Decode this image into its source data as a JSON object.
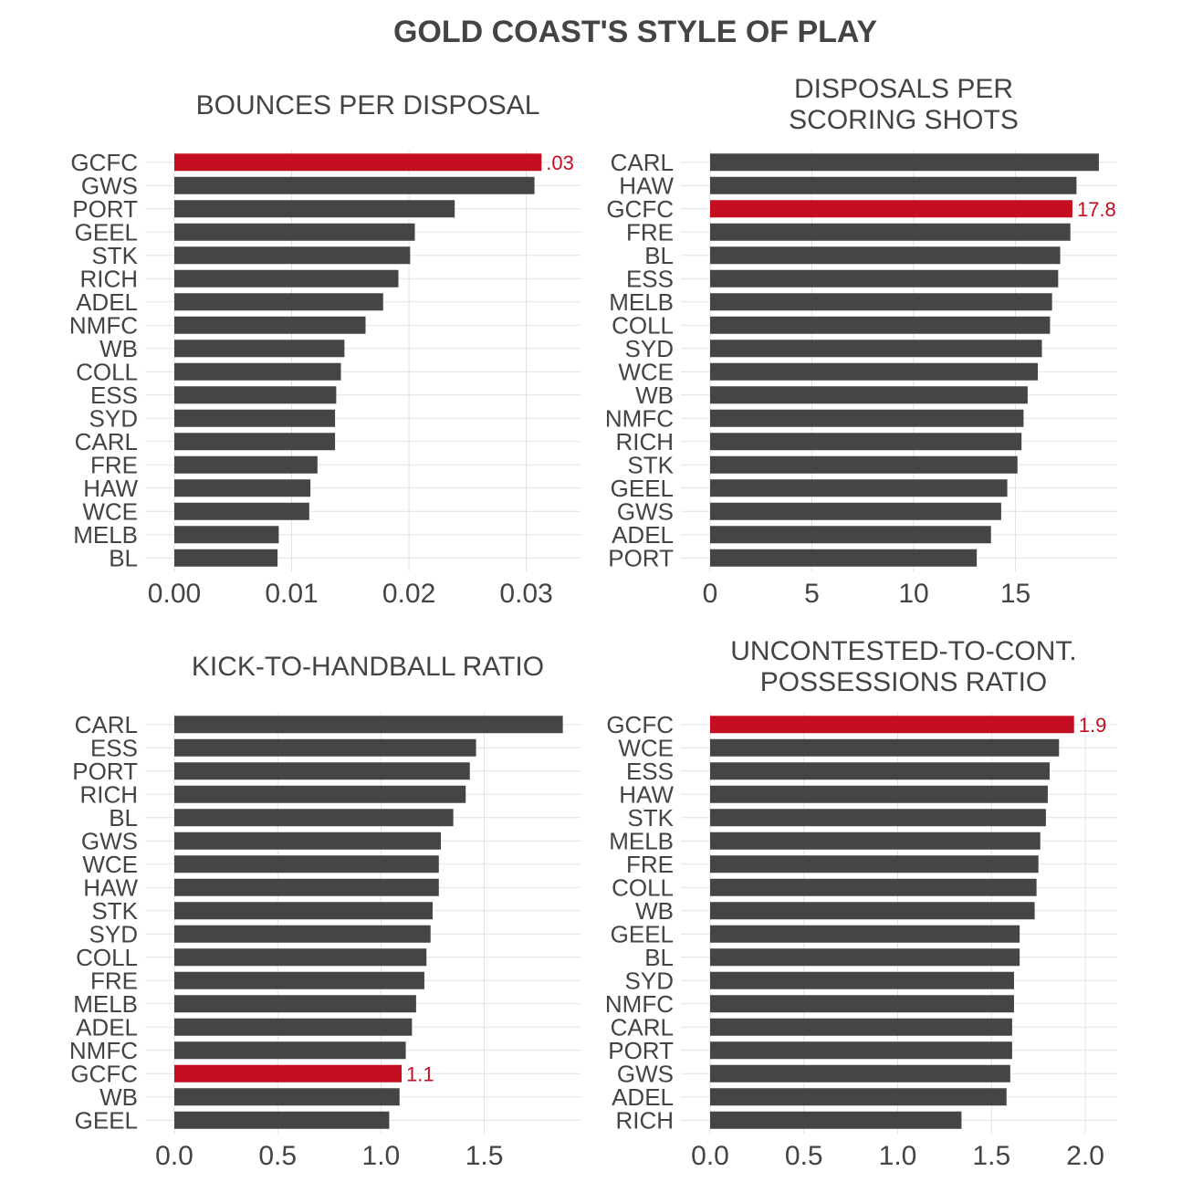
{
  "title": "GOLD COAST'S STYLE OF PLAY",
  "colors": {
    "bar": "#454545",
    "highlight": "#c40d20",
    "text": "#444444",
    "grid": "#e2e2e2"
  },
  "chart_data": [
    {
      "type": "bar",
      "orientation": "horizontal",
      "title_lines": [
        "BOUNCES PER DISPOSAL"
      ],
      "categories": [
        "GCFC",
        "GWS",
        "PORT",
        "GEEL",
        "STK",
        "RICH",
        "ADEL",
        "NMFC",
        "WB",
        "COLL",
        "ESS",
        "SYD",
        "CARL",
        "FRE",
        "HAW",
        "WCE",
        "MELB",
        "BL"
      ],
      "values": [
        0.0313,
        0.0307,
        0.0239,
        0.0205,
        0.0201,
        0.0191,
        0.0178,
        0.0163,
        0.0145,
        0.0142,
        0.0138,
        0.0137,
        0.0137,
        0.0122,
        0.0116,
        0.0115,
        0.0089,
        0.0088
      ],
      "highlight": "GCFC",
      "highlight_label": ".03",
      "xlim": [
        0,
        0.0347
      ],
      "xticks": [
        0,
        0.01,
        0.02,
        0.03
      ],
      "xtick_labels": [
        "0.00",
        "0.01",
        "0.02",
        "0.03"
      ]
    },
    {
      "type": "bar",
      "orientation": "horizontal",
      "title_lines": [
        "DISPOSALS PER",
        "SCORING SHOTS"
      ],
      "categories": [
        "CARL",
        "HAW",
        "GCFC",
        "FRE",
        "BL",
        "ESS",
        "MELB",
        "COLL",
        "SYD",
        "WCE",
        "WB",
        "NMFC",
        "RICH",
        "STK",
        "GEEL",
        "GWS",
        "ADEL",
        "PORT"
      ],
      "values": [
        19.1,
        18.0,
        17.8,
        17.7,
        17.2,
        17.1,
        16.8,
        16.7,
        16.3,
        16.1,
        15.6,
        15.4,
        15.3,
        15.1,
        14.6,
        14.3,
        13.8,
        13.1
      ],
      "highlight": "GCFC",
      "highlight_label": "17.8",
      "xlim": [
        0,
        20.0
      ],
      "xticks": [
        0,
        5,
        10,
        15
      ],
      "xtick_labels": [
        "0",
        "5",
        "10",
        "15"
      ]
    },
    {
      "type": "bar",
      "orientation": "horizontal",
      "title_lines": [
        "KICK-TO-HANDBALL RATIO"
      ],
      "categories": [
        "CARL",
        "ESS",
        "PORT",
        "RICH",
        "BL",
        "GWS",
        "WCE",
        "HAW",
        "STK",
        "SYD",
        "COLL",
        "FRE",
        "MELB",
        "ADEL",
        "NMFC",
        "GCFC",
        "WB",
        "GEEL"
      ],
      "values": [
        1.88,
        1.46,
        1.43,
        1.41,
        1.35,
        1.29,
        1.28,
        1.28,
        1.25,
        1.24,
        1.22,
        1.21,
        1.17,
        1.15,
        1.12,
        1.1,
        1.09,
        1.04
      ],
      "highlight": "GCFC",
      "highlight_label": "1.1",
      "xlim": [
        0,
        1.97
      ],
      "xticks": [
        0,
        0.5,
        1.0,
        1.5
      ],
      "xtick_labels": [
        "0.0",
        "0.5",
        "1.0",
        "1.5"
      ]
    },
    {
      "type": "bar",
      "orientation": "horizontal",
      "title_lines": [
        "UNCONTESTED-TO-CONT.",
        "POSSESSIONS RATIO"
      ],
      "categories": [
        "GCFC",
        "WCE",
        "ESS",
        "HAW",
        "STK",
        "MELB",
        "FRE",
        "COLL",
        "WB",
        "GEEL",
        "BL",
        "SYD",
        "NMFC",
        "CARL",
        "PORT",
        "GWS",
        "ADEL",
        "RICH"
      ],
      "values": [
        1.94,
        1.86,
        1.81,
        1.8,
        1.79,
        1.76,
        1.75,
        1.74,
        1.73,
        1.65,
        1.65,
        1.62,
        1.62,
        1.61,
        1.61,
        1.6,
        1.58,
        1.34
      ],
      "highlight": "GCFC",
      "highlight_label": "1.9",
      "xlim": [
        0,
        2.17
      ],
      "xticks": [
        0,
        0.5,
        1.0,
        1.5,
        2.0
      ],
      "xtick_labels": [
        "0.0",
        "0.5",
        "1.0",
        "1.5",
        "2.0"
      ]
    }
  ]
}
